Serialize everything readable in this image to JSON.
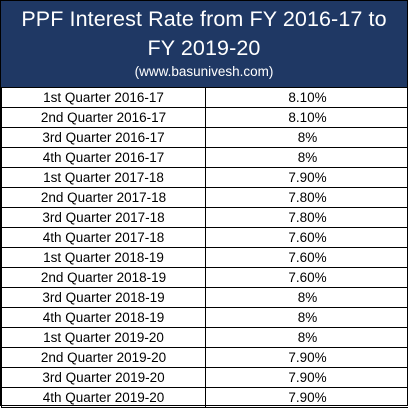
{
  "header": {
    "title": "PPF Interest Rate from FY 2016-17 to FY 2019-20",
    "source": "(www.basunivesh.com)"
  },
  "rows": [
    {
      "quarter": "1st Quarter 2016-17",
      "rate": "8.10%"
    },
    {
      "quarter": "2nd Quarter 2016-17",
      "rate": "8.10%"
    },
    {
      "quarter": "3rd Quarter 2016-17",
      "rate": "8%"
    },
    {
      "quarter": "4th Quarter 2016-17",
      "rate": "8%"
    },
    {
      "quarter": "1st Quarter 2017-18",
      "rate": "7.90%"
    },
    {
      "quarter": "2nd Quarter 2017-18",
      "rate": "7.80%"
    },
    {
      "quarter": "3rd Quarter 2017-18",
      "rate": "7.80%"
    },
    {
      "quarter": "4th Quarter 2017-18",
      "rate": "7.60%"
    },
    {
      "quarter": "1st Quarter 2018-19",
      "rate": "7.60%"
    },
    {
      "quarter": "2nd Quarter 2018-19",
      "rate": "7.60%"
    },
    {
      "quarter": "3rd Quarter 2018-19",
      "rate": "8%"
    },
    {
      "quarter": "4th Quarter 2018-19",
      "rate": "8%"
    },
    {
      "quarter": "1st Quarter 2019-20",
      "rate": "8%"
    },
    {
      "quarter": "2nd Quarter 2019-20",
      "rate": "7.90%"
    },
    {
      "quarter": "3rd Quarter 2019-20",
      "rate": "7.90%"
    },
    {
      "quarter": "4th Quarter 2019-20",
      "rate": "7.90%"
    }
  ]
}
